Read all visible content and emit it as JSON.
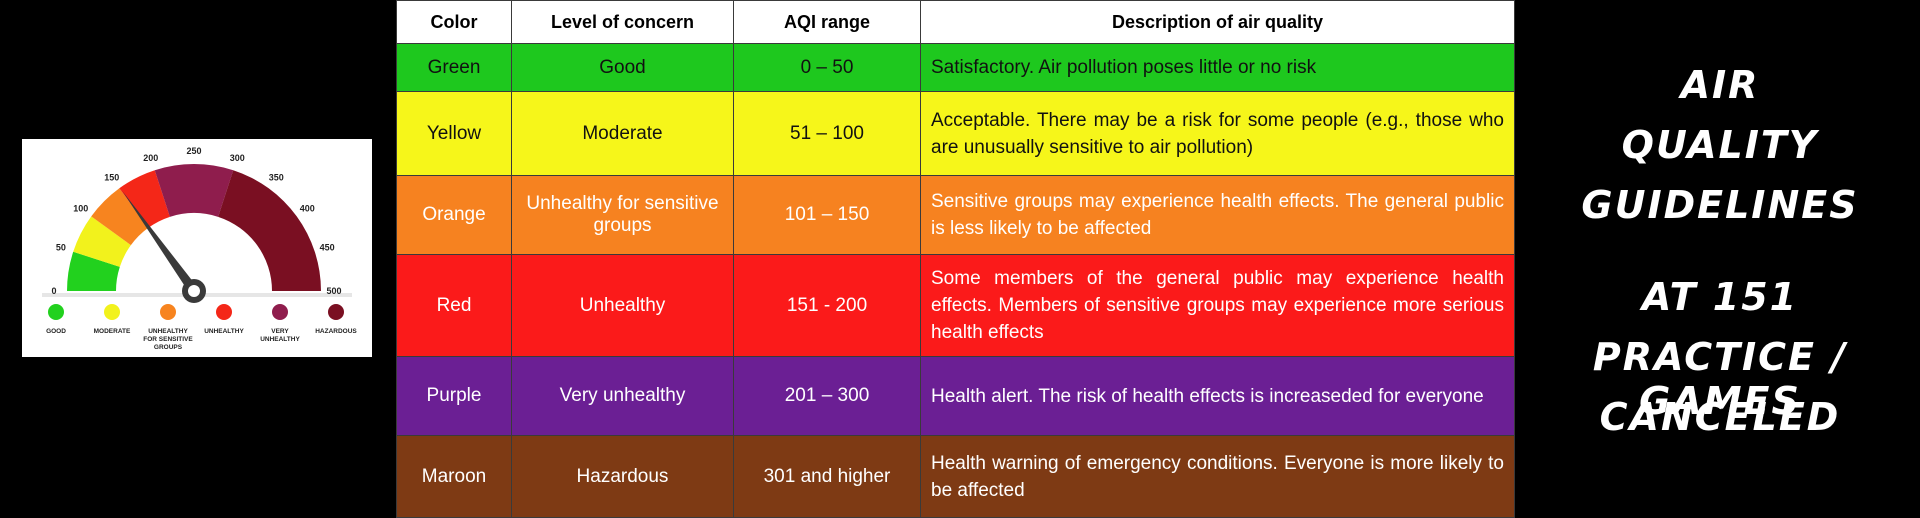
{
  "gauge": {
    "ticks": [
      "0",
      "50",
      "100",
      "150",
      "200",
      "250",
      "300",
      "350",
      "400",
      "450",
      "500"
    ],
    "segments": [
      {
        "name": "good",
        "color": "#22d11e"
      },
      {
        "name": "moderate",
        "color": "#f2f21c"
      },
      {
        "name": "unhealthy-sensitive",
        "color": "#f7841f"
      },
      {
        "name": "unhealthy",
        "color": "#f42718"
      },
      {
        "name": "very-unhealthy",
        "color": "#8f1d4d"
      },
      {
        "name": "hazardous",
        "color": "#7a0f22"
      }
    ],
    "needle_value": 151,
    "legend": [
      {
        "lines": [
          "GOOD"
        ],
        "color": "#22d11e"
      },
      {
        "lines": [
          "MODERATE"
        ],
        "color": "#f2f21c"
      },
      {
        "lines": [
          "UNHEALTHY",
          "FOR SENSITIVE",
          "GROUPS"
        ],
        "color": "#f7841f"
      },
      {
        "lines": [
          "UNHEALTHY"
        ],
        "color": "#f42718"
      },
      {
        "lines": [
          "VERY",
          "UNHEALTHY"
        ],
        "color": "#8f1d4d"
      },
      {
        "lines": [
          "HAZARDOUS"
        ],
        "color": "#7a0f22"
      }
    ]
  },
  "table": {
    "headers": [
      "Color",
      "Level of concern",
      "AQI range",
      "Description of air quality"
    ],
    "rows": [
      {
        "color": "Green",
        "level": "Good",
        "range": "0 – 50",
        "desc": "Satisfactory. Air pollution poses little or no risk"
      },
      {
        "color": "Yellow",
        "level": "Moderate",
        "range": "51 – 100",
        "desc": "Acceptable. There may be a risk for some people (e.g., those who are unusually sensitive to air pollution)"
      },
      {
        "color": "Orange",
        "level": "Unhealthy for sensitive groups",
        "range": "101 – 150",
        "desc": "Sensitive groups may experience health effects. The general public is less likely to be affected"
      },
      {
        "color": "Red",
        "level": "Unhealthy",
        "range": "151 - 200",
        "desc": "Some members of the general public may experience health effects. Members of sensitive groups may experience more serious health effects"
      },
      {
        "color": "Purple",
        "level": "Very unhealthy",
        "range": "201 – 300",
        "desc": "Health alert. The risk of health effects is increaseded for everyone"
      },
      {
        "color": "Maroon",
        "level": "Hazardous",
        "range": "301 and higher",
        "desc": "Health warning of emergency conditions. Everyone is more likely to be affected"
      }
    ]
  },
  "notice": {
    "lines": [
      "AIR",
      "QUALITY",
      "GUIDELINES",
      "AT 151",
      "PRACTICE / GAMES",
      "CANCELED"
    ]
  }
}
